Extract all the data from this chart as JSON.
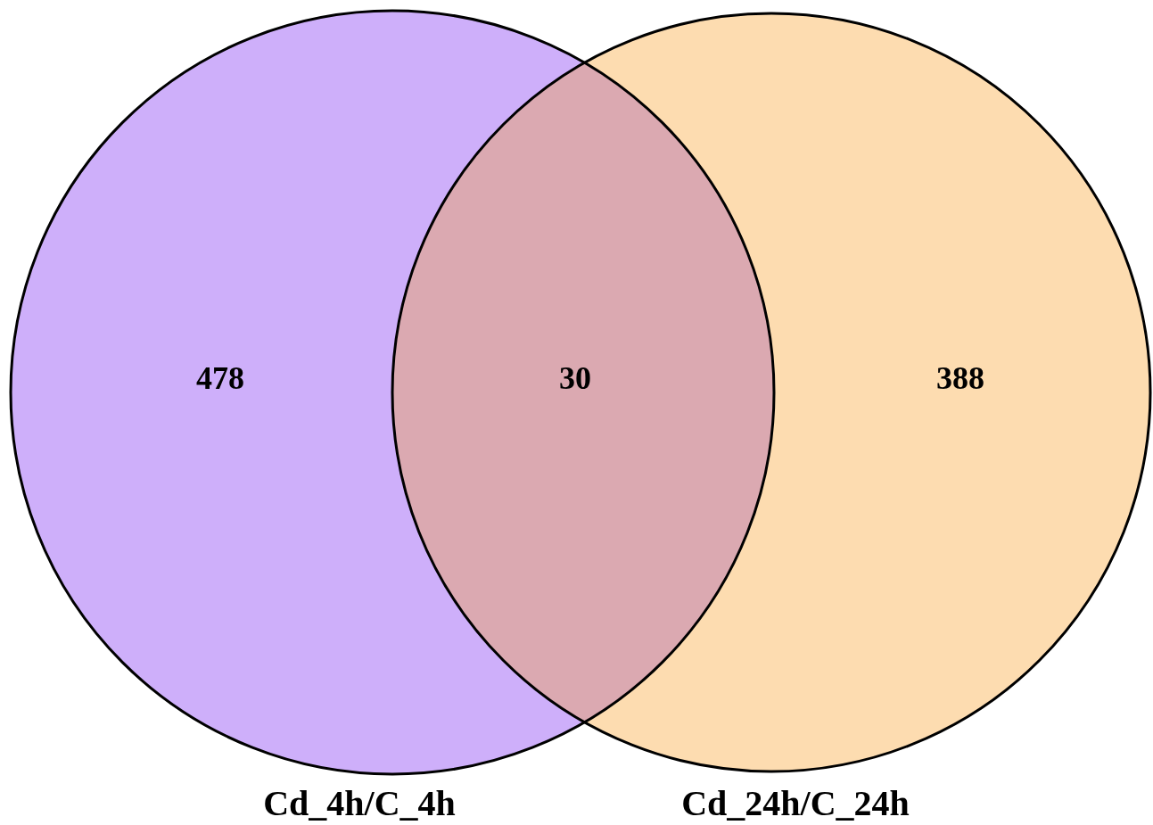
{
  "chart_data": {
    "type": "other",
    "categories": [
      "Cd_4h/C_4h",
      null,
      "Cd_24h/C_24h"
    ],
    "values": [
      478,
      30,
      388
    ],
    "data_labels": true,
    "colors": [
      "#ceaffa",
      "#dba9b1",
      "#fddcb0"
    ]
  }
}
